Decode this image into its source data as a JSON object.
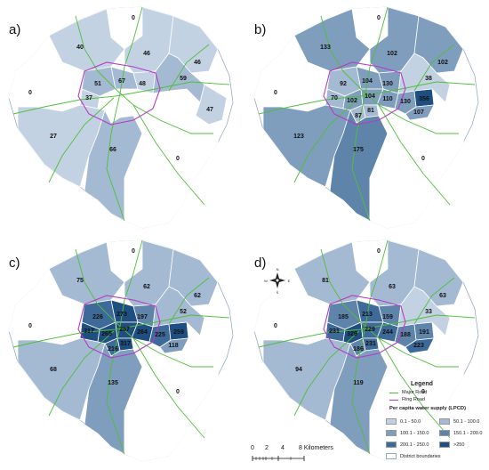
{
  "panels": [
    {
      "id": "a",
      "label": "a)",
      "values": {
        "north0": "0",
        "nw": "40",
        "ncen": "46",
        "ne": "46",
        "west": "0",
        "c1": "51",
        "c2": "67",
        "c3": "37",
        "c4": "48",
        "east": "59",
        "fe": "47",
        "sw": "27",
        "south": "66",
        "se": "0"
      }
    },
    {
      "id": "b",
      "label": "b)",
      "values": {
        "north0": "0",
        "nw": "133",
        "ncen": "102",
        "ne": "102",
        "west": "0",
        "c1": "92",
        "c2": "104",
        "c3": "70",
        "c4": "130",
        "c5": "102",
        "c6": "104",
        "c7": "110",
        "c8": "81",
        "c9": "87",
        "c10": "130",
        "c11": "356",
        "c12": "107",
        "east": "38",
        "sw": "123",
        "south": "175",
        "se": "0"
      }
    },
    {
      "id": "c",
      "label": "c)",
      "values": {
        "north0": "0",
        "nw": "75",
        "ncen": "62",
        "ne": "62",
        "west": "0",
        "c1": "226",
        "c2": "273",
        "c3": "317",
        "c4": "197",
        "c5": "265",
        "c6": "287",
        "c7": "264",
        "c8": "317",
        "c9": "216",
        "c10": "225",
        "c11": "259",
        "c12": "118",
        "east": "52",
        "sw": "68",
        "south": "135",
        "se": "0"
      }
    },
    {
      "id": "d",
      "label": "d)",
      "values": {
        "north0": "0",
        "nw": "81",
        "ncen": "63",
        "ne": "63",
        "west": "0",
        "c1": "185",
        "c2": "213",
        "c3": "231",
        "c4": "159",
        "c5": "329",
        "c6": "229",
        "c7": "244",
        "c8": "231",
        "c9": "186",
        "c10": "188",
        "c11": "191",
        "c12": "223",
        "east": "33",
        "sw": "94",
        "south": "119",
        "se": "0"
      }
    }
  ],
  "legend": {
    "title": "Legend",
    "major_road": "Major Road",
    "ring_road": "Ring Road",
    "subtitle": "Per capita water supply (LPCD)",
    "classes": [
      {
        "label": "0.1 - 50.0",
        "color": "#c3d2e2"
      },
      {
        "label": "50.1 - 100.0",
        "color": "#a4b9d2"
      },
      {
        "label": "100.1 - 150.0",
        "color": "#7f9dbd"
      },
      {
        "label": "150.1 - 200.0",
        "color": "#5f84aa"
      },
      {
        "label": "200.1 - 250.0",
        "color": "#3d6a99"
      },
      {
        "label": ">250",
        "color": "#1e4f80"
      }
    ],
    "district": "District boundaries",
    "road_color": "#4fbf3a",
    "ring_color": "#b43cc8"
  },
  "scalebar": {
    "ticks": [
      "0",
      "2",
      "4",
      "8 Kilometers"
    ]
  },
  "north_arrow": {
    "n": "N",
    "s": "S",
    "e": "E",
    "w": "W"
  }
}
